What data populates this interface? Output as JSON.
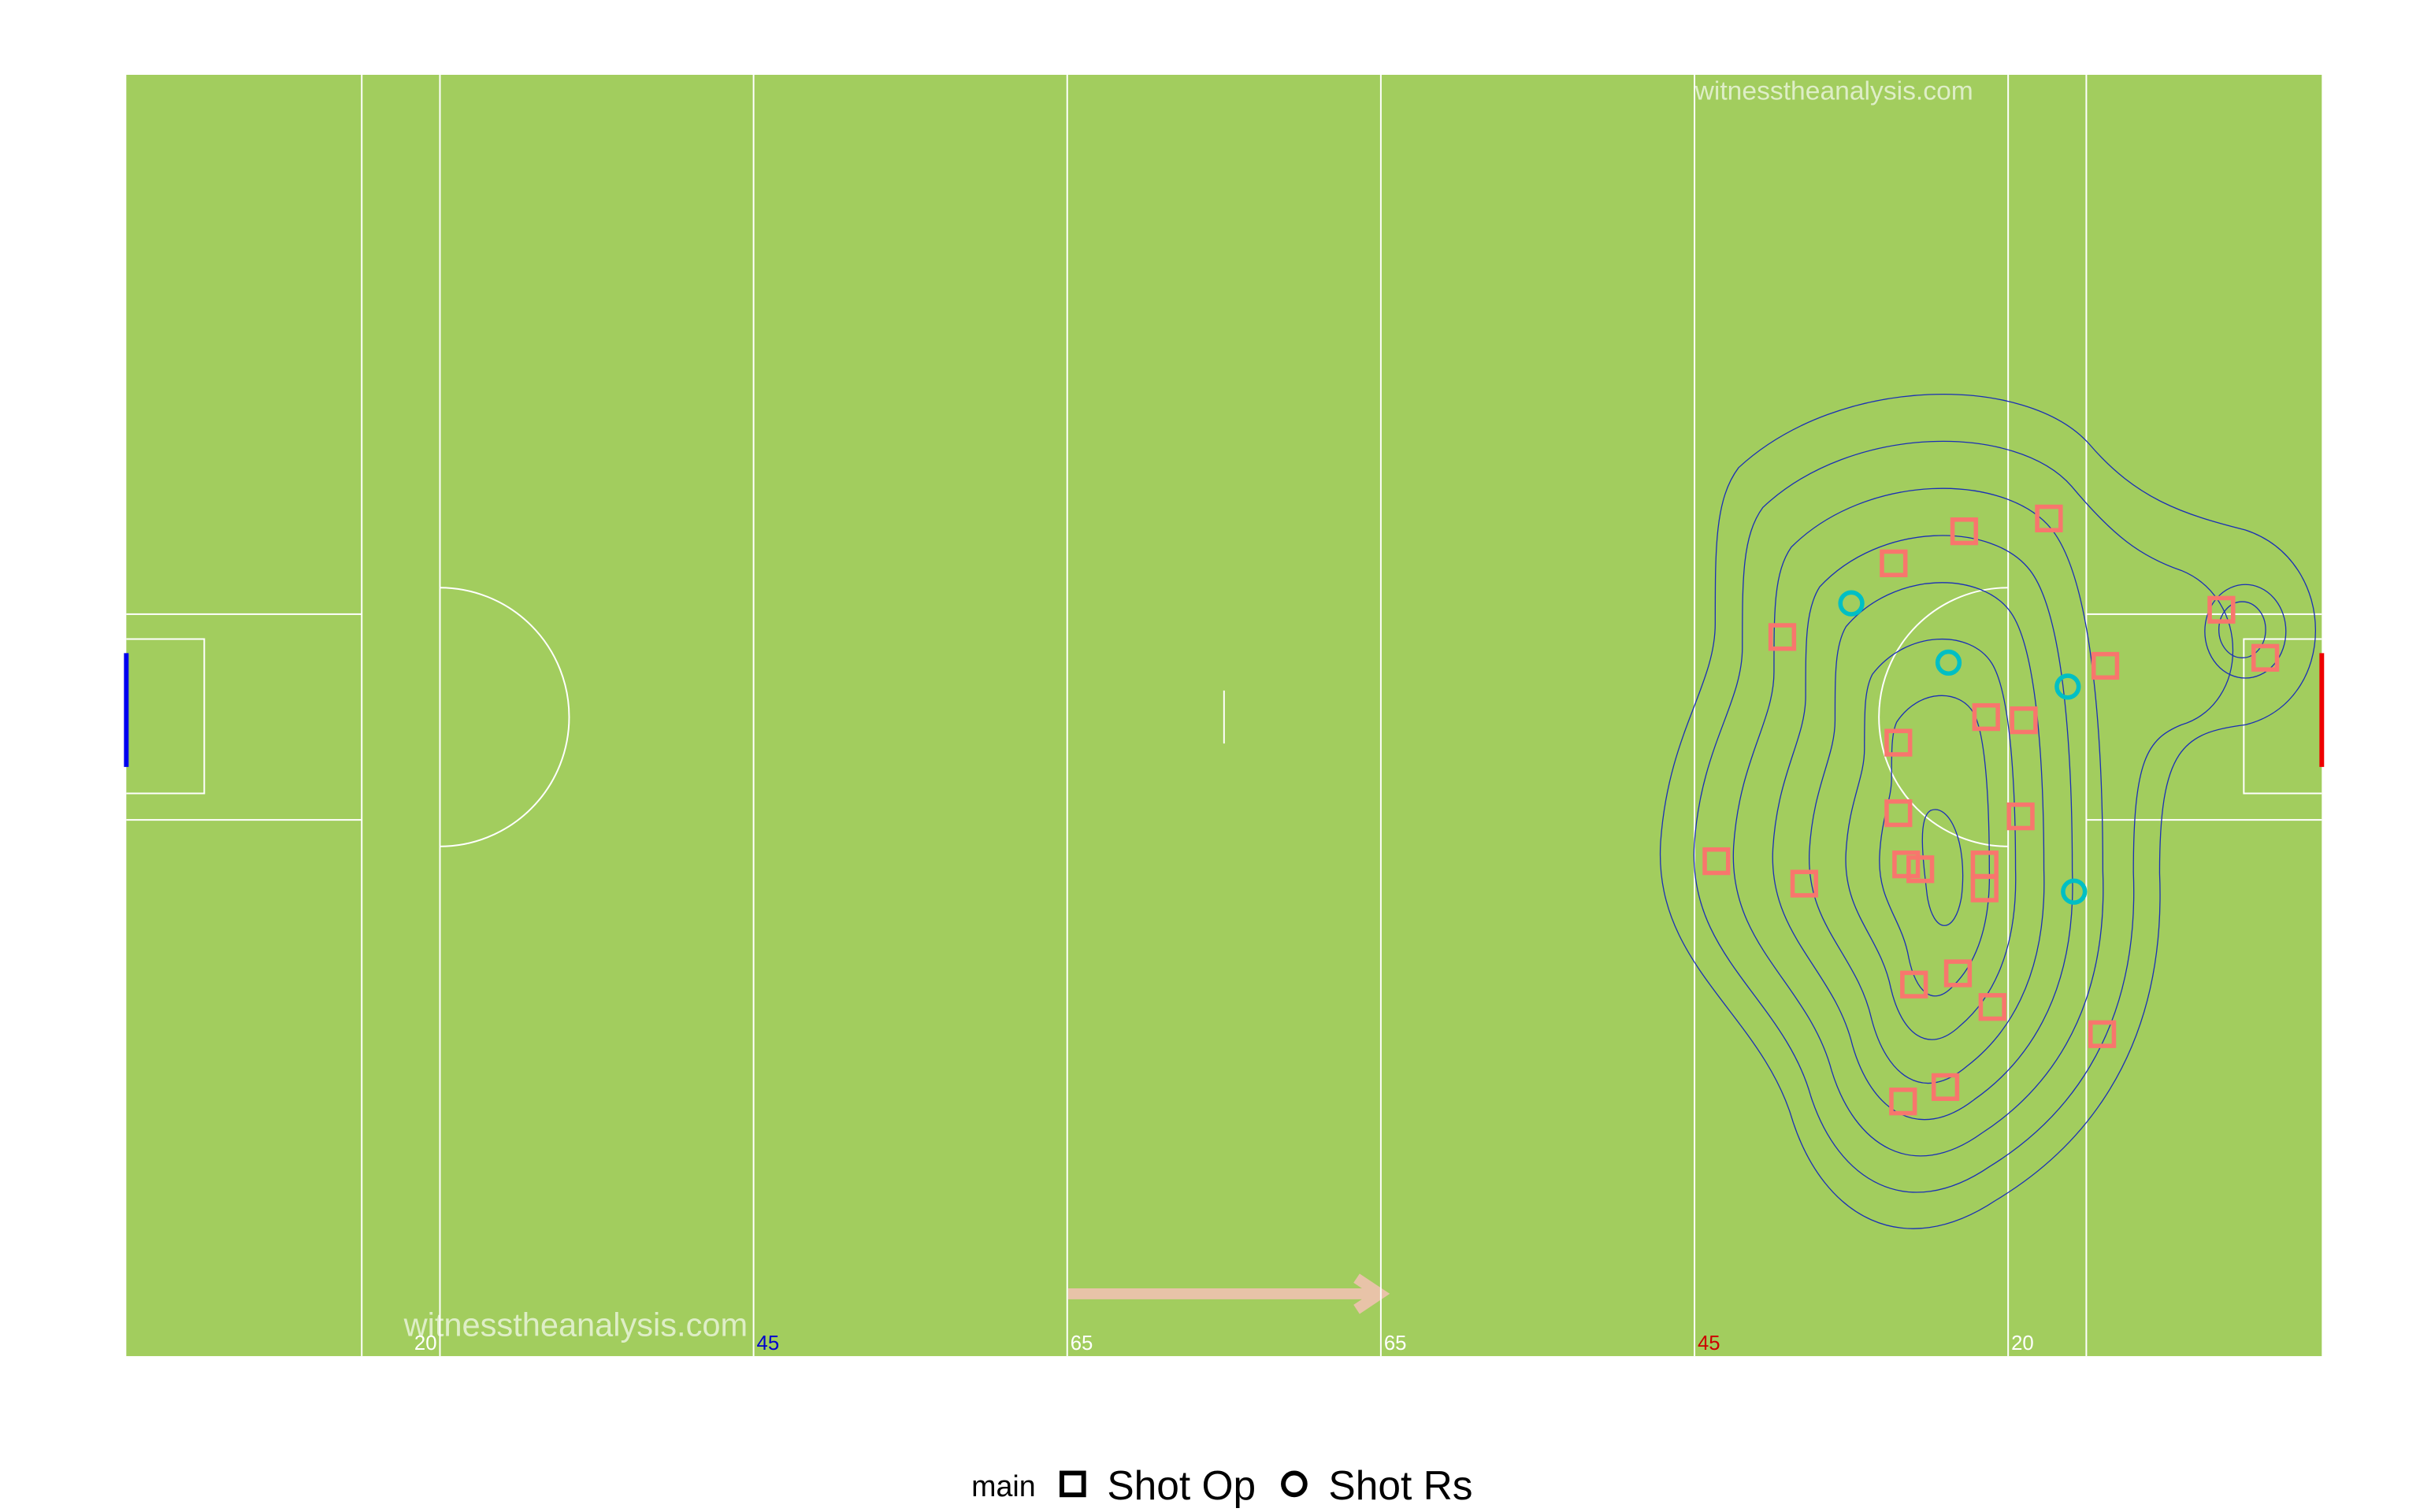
{
  "chart_data": {
    "type": "scatter",
    "xlim": [
      0,
      140
    ],
    "ylim": [
      0,
      80
    ],
    "xticks": [
      20,
      {
        "value": 40,
        "label": "45"
      },
      {
        "value": 60,
        "label": "65"
      },
      {
        "value": 80,
        "label": "65"
      },
      {
        "value": 100,
        "label": "45"
      },
      {
        "value": 120,
        "label": "20"
      }
    ],
    "xtick_colors": [
      "#ffffff",
      "#0000cc",
      "#ffffff",
      "#ffffff",
      "#cc0000",
      "#ffffff"
    ],
    "watermarks": [
      "witnesstheanalysis.com",
      "witnesstheanalysis.com"
    ],
    "legend_title": "main",
    "series": [
      {
        "name": "Shot Op",
        "color": "#f8766d",
        "marker": "square",
        "x": [
          112.7,
          117.2,
          122.6,
          105.6,
          126.2,
          133.6,
          136.4,
          118.6,
          121.0,
          113.0,
          113.0,
          120.8,
          101.4,
          107.0,
          113.5,
          114.4,
          118.5,
          118.5,
          114.0,
          116.8,
          119.0,
          126.0,
          113.3,
          116.0
        ],
        "y": [
          30.5,
          28.5,
          27.7,
          35.1,
          36.9,
          33.4,
          36.4,
          40.1,
          40.3,
          41.7,
          46.1,
          46.3,
          49.1,
          50.5,
          49.3,
          49.6,
          49.3,
          50.8,
          56.8,
          56.1,
          58.2,
          59.9,
          64.1,
          63.2
        ]
      },
      {
        "name": "Shot Rs",
        "color": "#00bfc4",
        "marker": "circle",
        "x": [
          110.0,
          116.2,
          123.8,
          124.2
        ],
        "y": [
          33.0,
          36.7,
          38.2,
          51.0
        ]
      }
    ]
  }
}
